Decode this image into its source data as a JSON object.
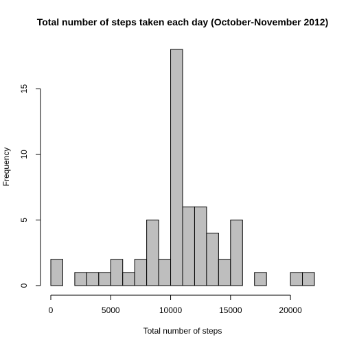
{
  "chart_data": {
    "type": "bar",
    "title": "Total number of steps taken each day (October-November 2012)",
    "xlabel": "Total number of steps",
    "ylabel": "Frequency",
    "bin_width": 1000,
    "bins": [
      {
        "start": 0,
        "end": 1000,
        "count": 2
      },
      {
        "start": 1000,
        "end": 2000,
        "count": 0
      },
      {
        "start": 2000,
        "end": 3000,
        "count": 1
      },
      {
        "start": 3000,
        "end": 4000,
        "count": 1
      },
      {
        "start": 4000,
        "end": 5000,
        "count": 1
      },
      {
        "start": 5000,
        "end": 6000,
        "count": 2
      },
      {
        "start": 6000,
        "end": 7000,
        "count": 1
      },
      {
        "start": 7000,
        "end": 8000,
        "count": 2
      },
      {
        "start": 8000,
        "end": 9000,
        "count": 5
      },
      {
        "start": 9000,
        "end": 10000,
        "count": 2
      },
      {
        "start": 10000,
        "end": 11000,
        "count": 18
      },
      {
        "start": 11000,
        "end": 12000,
        "count": 6
      },
      {
        "start": 12000,
        "end": 13000,
        "count": 6
      },
      {
        "start": 13000,
        "end": 14000,
        "count": 4
      },
      {
        "start": 14000,
        "end": 15000,
        "count": 2
      },
      {
        "start": 15000,
        "end": 16000,
        "count": 5
      },
      {
        "start": 16000,
        "end": 17000,
        "count": 0
      },
      {
        "start": 17000,
        "end": 18000,
        "count": 1
      },
      {
        "start": 18000,
        "end": 19000,
        "count": 0
      },
      {
        "start": 19000,
        "end": 20000,
        "count": 0
      },
      {
        "start": 20000,
        "end": 21000,
        "count": 1
      },
      {
        "start": 21000,
        "end": 22000,
        "count": 1
      }
    ],
    "xlim": [
      0,
      22000
    ],
    "ylim": [
      0,
      18
    ],
    "x_ticks": [
      0,
      5000,
      10000,
      15000,
      20000
    ],
    "y_ticks": [
      0,
      5,
      10,
      15
    ],
    "grid": false,
    "bar_color": "#bebebe",
    "bar_edge_color": "#000000"
  }
}
